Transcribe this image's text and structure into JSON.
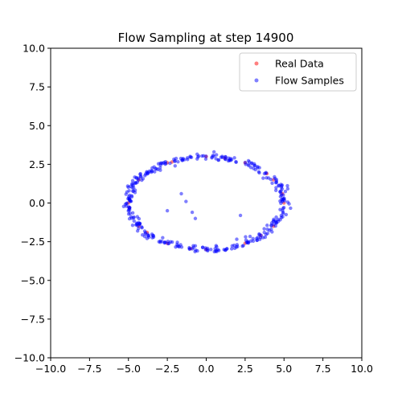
{
  "chart_data": {
    "type": "scatter",
    "title": "Flow Sampling at step 14900",
    "xlabel": "",
    "ylabel": "",
    "xlim": [
      -10,
      10
    ],
    "ylim": [
      -10,
      10
    ],
    "xticks": [
      "−10.0",
      "−7.5",
      "−5.0",
      "−2.5",
      "0.0",
      "2.5",
      "5.0",
      "7.5",
      "10.0"
    ],
    "yticks": [
      "−10.0",
      "−7.5",
      "−5.0",
      "−2.5",
      "0.0",
      "2.5",
      "5.0",
      "7.5",
      "10.0"
    ],
    "grid": false,
    "legend_position": "top-right",
    "series": [
      {
        "name": "Real Data",
        "color": "#ff0000",
        "marker": "circle",
        "alpha": 0.5,
        "points": [
          [
            5.0,
            0.0
          ],
          [
            4.33,
            1.5
          ],
          [
            2.5,
            2.6
          ],
          [
            0.0,
            3.0
          ],
          [
            -2.5,
            2.6
          ],
          [
            -4.33,
            1.5
          ],
          [
            -5.0,
            0.0
          ],
          [
            -4.33,
            -1.5
          ],
          [
            -2.5,
            -2.6
          ],
          [
            0.0,
            -3.0
          ],
          [
            2.5,
            -2.6
          ],
          [
            4.33,
            -1.5
          ],
          [
            -2.2,
            2.65
          ],
          [
            4.9,
            0.6
          ],
          [
            -4.95,
            -0.3
          ],
          [
            3.5,
            -2.1
          ],
          [
            -1.0,
            -2.95
          ],
          [
            1.2,
            2.9
          ],
          [
            -3.8,
            -1.9
          ],
          [
            3.9,
            1.9
          ]
        ]
      },
      {
        "name": "Flow Samples",
        "color": "#0000ff",
        "marker": "circle",
        "alpha": 0.5,
        "ring": {
          "cx": 0.0,
          "cy": 0.0,
          "rx": 5.0,
          "ry": 3.0,
          "count": 360
        },
        "outliers": [
          [
            -1.6,
            0.6
          ],
          [
            -0.9,
            -0.6
          ],
          [
            -2.5,
            -0.5
          ],
          [
            -0.7,
            -1.0
          ],
          [
            2.2,
            -0.8
          ],
          [
            -1.3,
            0.1
          ],
          [
            0.5,
            3.3
          ],
          [
            -2.0,
            2.4
          ]
        ]
      }
    ]
  }
}
